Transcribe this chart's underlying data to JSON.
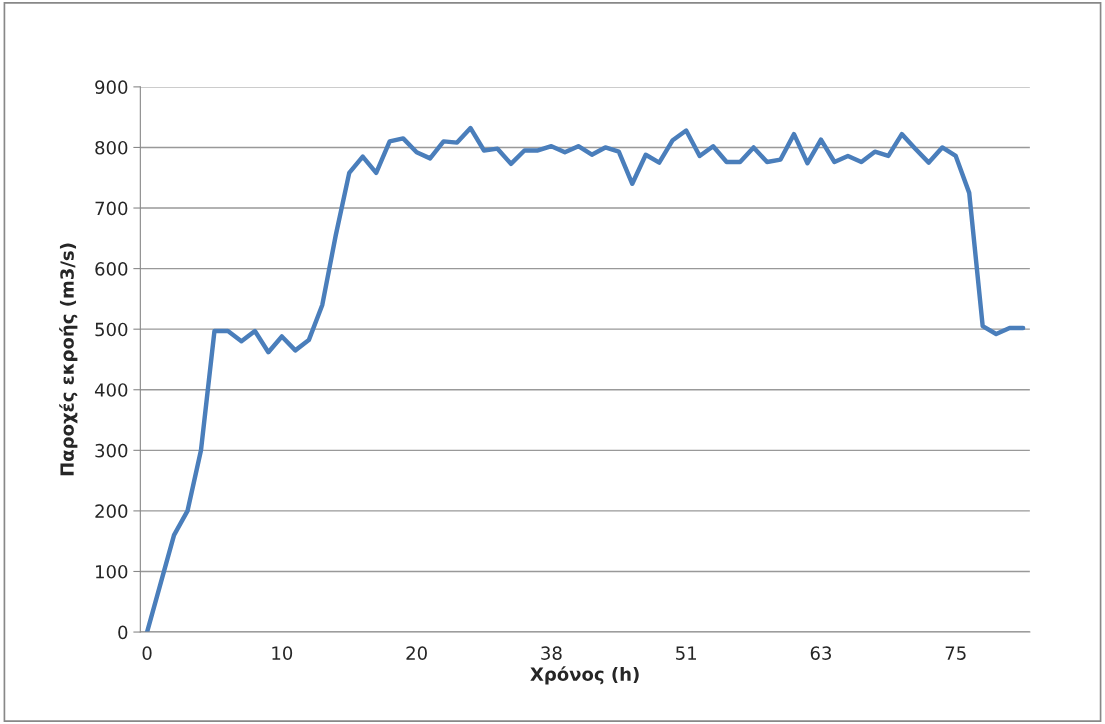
{
  "chart_data": {
    "type": "line",
    "xlabel": "Χρόνος (h)",
    "ylabel": "Παροχές εκροής (m3/s)",
    "categories": [
      "0",
      null,
      null,
      null,
      null,
      null,
      null,
      null,
      null,
      null,
      "10",
      null,
      null,
      null,
      null,
      null,
      null,
      null,
      null,
      null,
      "20",
      null,
      null,
      null,
      null,
      null,
      null,
      null,
      null,
      null,
      "38",
      null,
      null,
      null,
      null,
      null,
      null,
      null,
      null,
      null,
      "51",
      null,
      null,
      null,
      null,
      null,
      null,
      null,
      null,
      null,
      "63",
      null,
      null,
      null,
      null,
      null,
      null,
      null,
      null,
      null,
      "75",
      null,
      null,
      null,
      null,
      null
    ],
    "series": [
      {
        "color": "#4a7ebb",
        "values": [
          0,
          80,
          160,
          200,
          300,
          497,
          497,
          480,
          497,
          462,
          488,
          465,
          482,
          540,
          655,
          758,
          785,
          758,
          810,
          815,
          792,
          782,
          810,
          808,
          832,
          795,
          798,
          773,
          795,
          795,
          802,
          792,
          802,
          788,
          800,
          793,
          740,
          788,
          775,
          812,
          828,
          786,
          802,
          776,
          776,
          800,
          776,
          780,
          822,
          774,
          813,
          776,
          786,
          776,
          793,
          786,
          822,
          798,
          775,
          800,
          786,
          725,
          505,
          492,
          502,
          502
        ]
      }
    ],
    "ylim": [
      0,
      900
    ],
    "yticks": [
      0,
      100,
      200,
      300,
      400,
      500,
      600,
      700,
      800,
      900
    ],
    "grid": "y",
    "legend": false,
    "marker": "none",
    "line_style": "solid"
  }
}
